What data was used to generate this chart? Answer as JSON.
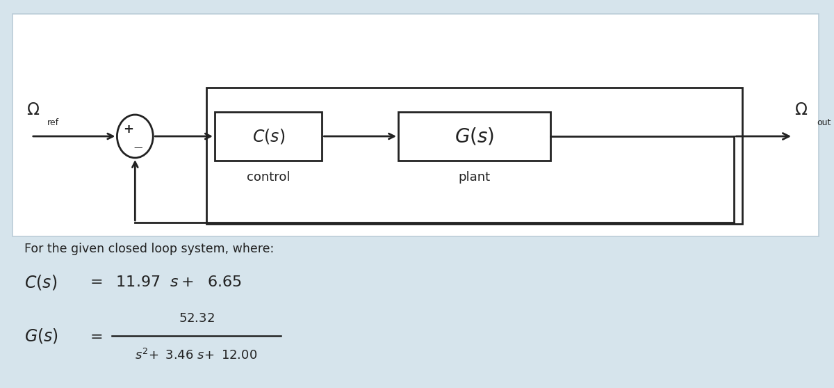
{
  "bg_color": "#d6e4ec",
  "panel_bg": "#f0f4f6",
  "panel_edge": "#bbcdd8",
  "box_facecolor": "#f8f8f8",
  "box_edgecolor": "#444444",
  "line_color": "#222222",
  "text_color": "#111111",
  "title_text": "For the given closed loop system, where:",
  "Cs_num_coeff": "11.97",
  "Cs_const": "6.65",
  "Gs_num": "52.32",
  "Gs_den_a": "3.46",
  "Gs_den_b": "12.00",
  "label_ref": "ref",
  "label_out": "out",
  "control_label": "control",
  "plant_label": "plant"
}
